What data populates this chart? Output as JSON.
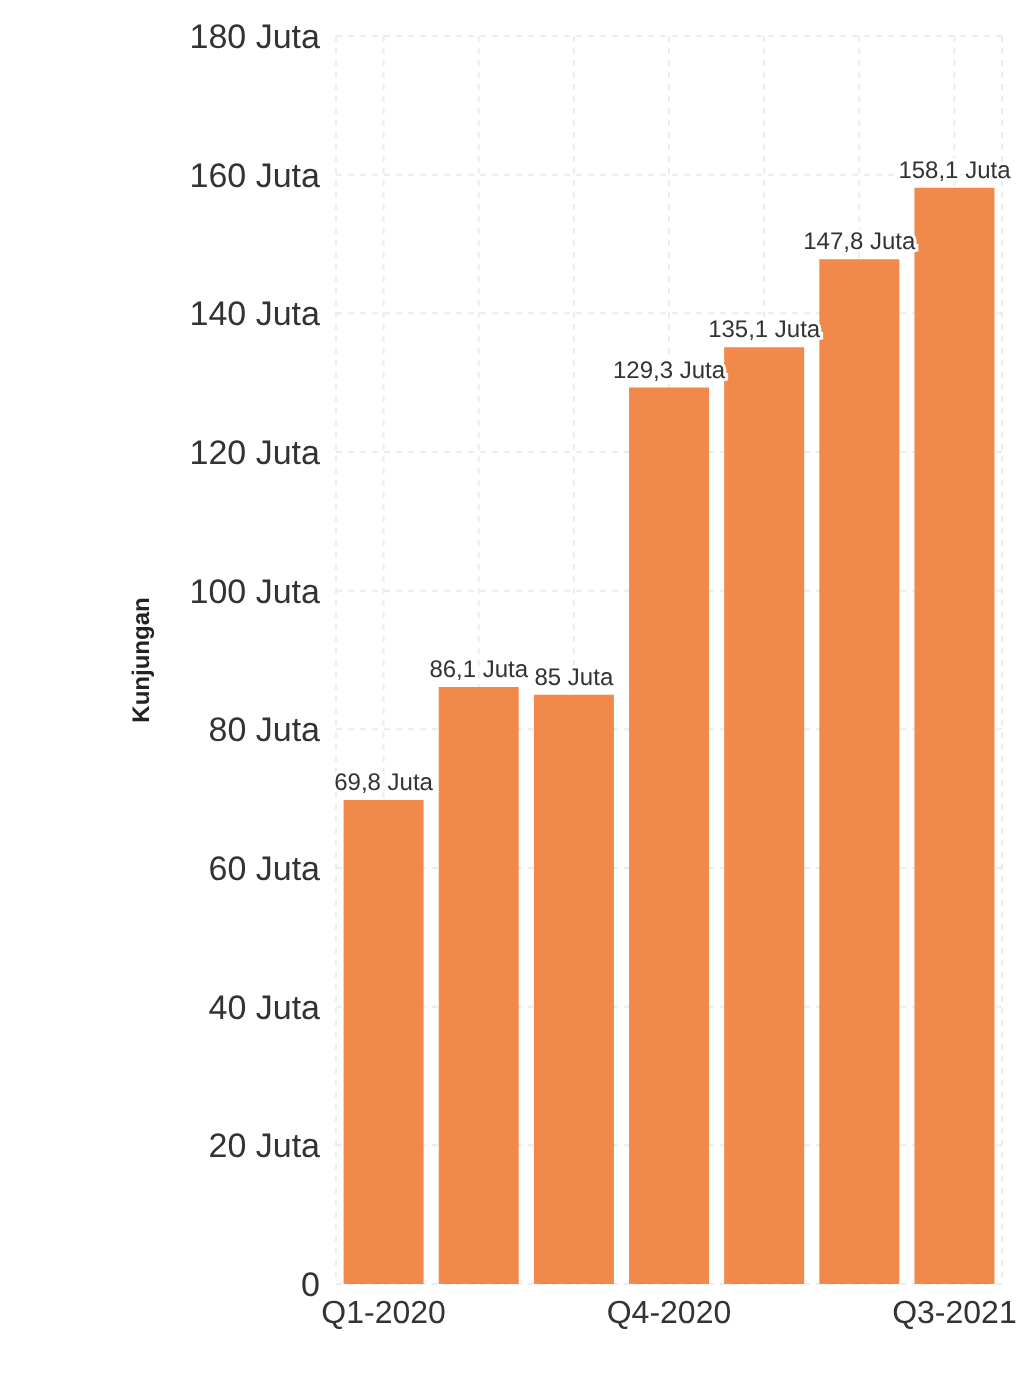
{
  "chart_data": {
    "type": "bar",
    "ylabel": "Kunjungan",
    "categories": [
      "Q1-2020",
      null,
      null,
      "Q4-2020",
      null,
      null,
      "Q3-2021"
    ],
    "values": [
      69.8,
      86.1,
      85,
      129.3,
      135.1,
      147.8,
      158.1
    ],
    "value_labels": [
      "69,8 Juta",
      "86,1 Juta",
      "85 Juta",
      "129,3 Juta",
      "135,1 Juta",
      "147,8 Juta",
      "158,1 Juta"
    ],
    "color": "#f0894a",
    "ylim": [
      0,
      180
    ],
    "yticks": [
      0,
      {
        "value": 20,
        "label": "20 Juta"
      },
      {
        "value": 40,
        "label": "40 Juta"
      },
      {
        "value": 60,
        "label": "60 Juta"
      },
      {
        "value": 80,
        "label": "80 Juta"
      },
      {
        "value": 100,
        "label": "100 Juta"
      },
      {
        "value": 120,
        "label": "120 Juta"
      },
      {
        "value": 140,
        "label": "140 Juta"
      },
      {
        "value": 160,
        "label": "160 Juta"
      },
      {
        "value": 180,
        "label": "180 Juta"
      }
    ],
    "grid": true
  }
}
